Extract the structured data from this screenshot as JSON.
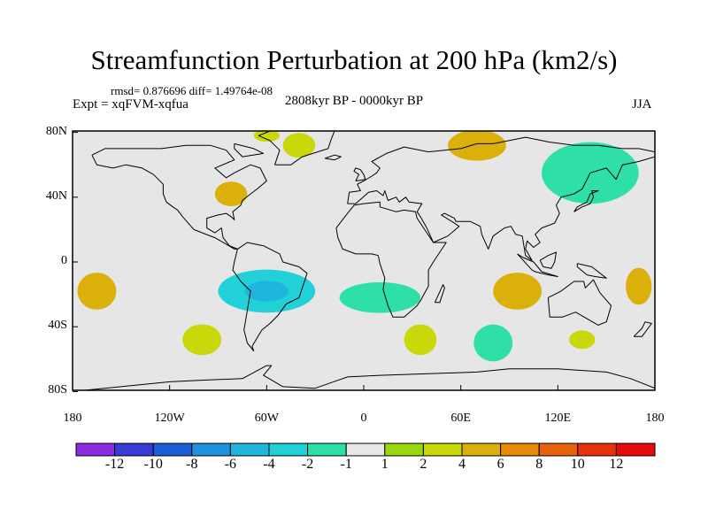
{
  "title": "Streamfunction Perturbation at 200 hPa (km2/s)",
  "stats_line": "rmsd= 0.876696 diff= 1.49764e-08",
  "experiment_label": "Expt = xqFVM-xqfua",
  "period_label": "2808kyr BP - 0000kyr BP",
  "season_label": "JJA",
  "lat_ticks": [
    {
      "label": "80N",
      "lat": 80
    },
    {
      "label": "40N",
      "lat": 40
    },
    {
      "label": "0",
      "lat": 0
    },
    {
      "label": "40S",
      "lat": -40
    },
    {
      "label": "80S",
      "lat": -80
    }
  ],
  "lon_ticks": [
    {
      "label": "180",
      "lon": -180
    },
    {
      "label": "120W",
      "lon": -120
    },
    {
      "label": "60W",
      "lon": -60
    },
    {
      "label": "0",
      "lon": 0
    },
    {
      "label": "60E",
      "lon": 60
    },
    {
      "label": "120E",
      "lon": 120
    },
    {
      "label": "180",
      "lon": 180
    }
  ],
  "colorbar": {
    "labels": [
      "-12",
      "-10",
      "-8",
      "-6",
      "-4",
      "-2",
      "-1",
      "1",
      "2",
      "4",
      "6",
      "8",
      "10",
      "12"
    ],
    "colors": [
      "#8a2be2",
      "#3a3ad6",
      "#1a5ed8",
      "#1e90e0",
      "#1fb5dc",
      "#22d0d8",
      "#2ee0a8",
      "#e8e8e8",
      "#9ad80e",
      "#c8d808",
      "#dcb00a",
      "#e68a08",
      "#e8620a",
      "#e8320c",
      "#e80c0c"
    ]
  },
  "field": {
    "units": "km2/s",
    "background_color": "#e6e6e6",
    "anomalies": [
      {
        "name": "north-atlantic-high",
        "lon": -60,
        "lat": 78,
        "value": 2,
        "rx": 8,
        "ry": 2
      },
      {
        "name": "greenland-high",
        "lon": -40,
        "lat": 72,
        "value": 2,
        "rx": 10,
        "ry": 4
      },
      {
        "name": "eurasia-high",
        "lon": 70,
        "lat": 72,
        "value": 4,
        "rx": 18,
        "ry": 5
      },
      {
        "name": "east-us-high",
        "lon": -82,
        "lat": 42,
        "value": 4,
        "rx": 10,
        "ry": 4
      },
      {
        "name": "pacific-low-band",
        "lon": 140,
        "lat": 55,
        "value": -2,
        "rx": 30,
        "ry": 10
      },
      {
        "name": "tropical-atlantic-low",
        "lon": -60,
        "lat": -18,
        "value": -4,
        "rx": 30,
        "ry": 7
      },
      {
        "name": "south-atlantic-low",
        "lon": 10,
        "lat": -22,
        "value": -2,
        "rx": 25,
        "ry": 5
      },
      {
        "name": "west-pacific-high",
        "lon": -165,
        "lat": -18,
        "value": 4,
        "rx": 12,
        "ry": 6
      },
      {
        "name": "indian-ocean-high",
        "lon": 95,
        "lat": -18,
        "value": 4,
        "rx": 15,
        "ry": 6
      },
      {
        "name": "east-pacific-high",
        "lon": 170,
        "lat": -15,
        "value": 4,
        "rx": 8,
        "ry": 6
      },
      {
        "name": "south-pacific-high",
        "lon": -100,
        "lat": -48,
        "value": 2,
        "rx": 12,
        "ry": 5
      },
      {
        "name": "south-africa-high",
        "lon": 35,
        "lat": -48,
        "value": 2,
        "rx": 10,
        "ry": 5
      },
      {
        "name": "south-indian-low",
        "lon": 80,
        "lat": -50,
        "value": -2,
        "rx": 12,
        "ry": 6
      },
      {
        "name": "subantarctic-high",
        "lon": 135,
        "lat": -48,
        "value": 2,
        "rx": 8,
        "ry": 3
      }
    ]
  }
}
